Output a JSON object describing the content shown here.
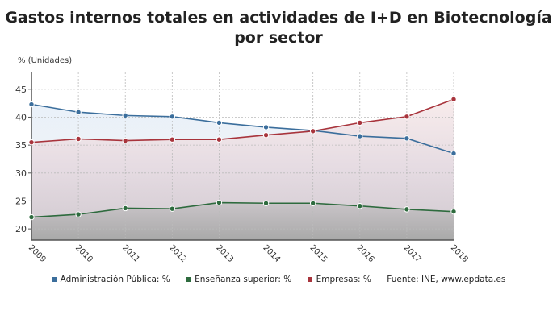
{
  "chart_data": {
    "type": "line",
    "title": "Gastos internos totales en actividades de I+D en Biotecnología por sector",
    "ylabel": "% (Unidades)",
    "xlabel": "",
    "x": [
      "2009",
      "2010",
      "2011",
      "2012",
      "2013",
      "2014",
      "2015",
      "2016",
      "2017",
      "2018"
    ],
    "ylim": [
      18,
      48
    ],
    "yticks": [
      20,
      25,
      30,
      35,
      40,
      45
    ],
    "grid": true,
    "legend_position": "bottom",
    "series": [
      {
        "name": "Administración Pública: %",
        "color": "#3b6e9c",
        "values": [
          42.3,
          40.9,
          40.3,
          40.1,
          39.0,
          38.2,
          37.6,
          36.6,
          36.2,
          33.5
        ]
      },
      {
        "name": "Enseñanza superior: %",
        "color": "#2e6b3e",
        "values": [
          22.1,
          22.6,
          23.7,
          23.6,
          24.7,
          24.6,
          24.6,
          24.1,
          23.5,
          23.1
        ]
      },
      {
        "name": "Empresas: %",
        "color": "#a8343c",
        "values": [
          35.5,
          36.1,
          35.8,
          36.0,
          36.0,
          36.8,
          37.5,
          39.0,
          40.1,
          43.2
        ]
      }
    ],
    "source": "Fuente: INE, www.epdata.es"
  }
}
